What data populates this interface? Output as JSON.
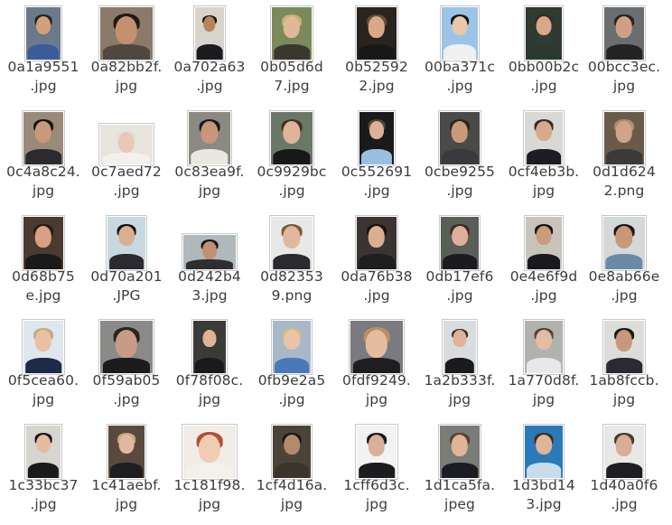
{
  "files": [
    {
      "line1": "0a1a9551",
      "line2": ".jpg",
      "bg": "#6a7a8a",
      "skin": "#d2a07a",
      "hair": "#2a2218",
      "shirt": "#3a5c9a"
    },
    {
      "line1": "0a82bb2f.",
      "line2": "jpg",
      "bg": "#8a7a6a",
      "skin": "#c49070",
      "hair": "#1e1a16",
      "shirt": "#504840"
    },
    {
      "line1": "0a702a63",
      "line2": ".jpg",
      "bg": "#d8d4cc",
      "skin": "#b8845c",
      "hair": "#1a1410",
      "shirt": "#1c1c20"
    },
    {
      "line1": "0b05d6d",
      "line2": "7.jpg",
      "bg": "#7a8a5a",
      "skin": "#e0b898",
      "hair": "#c8b078",
      "shirt": "#3a3630"
    },
    {
      "line1": "0b52592",
      "line2": "2.jpg",
      "bg": "#2a2420",
      "skin": "#d8a888",
      "hair": "#6a4a30",
      "shirt": "#1a1816"
    },
    {
      "line1": "00ba371c",
      "line2": ".jpg",
      "bg": "#9cc4e8",
      "skin": "#e8c8a8",
      "hair": "#141414",
      "shirt": "#f0f0f0"
    },
    {
      "line1": "0bb00b2c",
      "line2": ".jpg",
      "bg": "#2e3a32",
      "skin": "#d8a888",
      "hair": "#3a2c20",
      "shirt": "#2a3a30"
    },
    {
      "line1": "00bcc3ec.",
      "line2": "jpg",
      "bg": "#6a6e70",
      "skin": "#d0a084",
      "hair": "#2a2420",
      "shirt": "#242424"
    },
    {
      "line1": "0c4a8c24.",
      "line2": "jpg",
      "bg": "#9a8a7a",
      "skin": "#c89a7a",
      "hair": "#181410",
      "shirt": "#2a2a30"
    },
    {
      "line1": "0c7aed72",
      "line2": ".jpg",
      "bg": "#e8e4de",
      "skin": "#e8c8b8",
      "hair": "#e8e0d8",
      "shirt": "#f4f0ec"
    },
    {
      "line1": "0c83ea9f.",
      "line2": "jpg",
      "bg": "#8a8a82",
      "skin": "#c8967a",
      "hair": "#1e1814",
      "shirt": "#eae6e0"
    },
    {
      "line1": "0c9929bc",
      "line2": ".jpg",
      "bg": "#6a7868",
      "skin": "#e0b498",
      "hair": "#4a3020",
      "shirt": "#181818"
    },
    {
      "line1": "0c552691",
      "line2": ".jpg",
      "bg": "#1a1a1c",
      "skin": "#dcb098",
      "hair": "#5a4230",
      "shirt": "#9ac0e0"
    },
    {
      "line1": "0cbe9255",
      "line2": ".jpg",
      "bg": "#4a4a48",
      "skin": "#c89a7c",
      "hair": "#2a2420",
      "shirt": "#3a3a3e"
    },
    {
      "line1": "0cf4eb3b.",
      "line2": "jpg",
      "bg": "#d8d8d4",
      "skin": "#d8aa8c",
      "hair": "#3a2c22",
      "shirt": "#1c1c22"
    },
    {
      "line1": "0d1d624",
      "line2": "2.png",
      "bg": "#6a5a4a",
      "skin": "#d0a488",
      "hair": "#a89070",
      "shirt": "#3a3a3a"
    },
    {
      "line1": "0d68b75",
      "line2": "e.jpg",
      "bg": "#4a3a30",
      "skin": "#d8a084",
      "hair": "#2a1e16",
      "shirt": "#1a1a1a"
    },
    {
      "line1": "0d70a201",
      "line2": ".JPG",
      "bg": "#c8d8e0",
      "skin": "#d8b090",
      "hair": "#141010",
      "shirt": "#2a2a30"
    },
    {
      "line1": "0d242b4",
      "line2": "3.jpg",
      "bg": "#b0b8bc",
      "skin": "#c09070",
      "hair": "#1a1614",
      "shirt": "#2e2e30"
    },
    {
      "line1": "0d82353",
      "line2": "9.png",
      "bg": "#e8e8e6",
      "skin": "#e0b8a0",
      "hair": "#7a5a3a",
      "shirt": "#2a2a30"
    },
    {
      "line1": "0da76b38",
      "line2": ".jpg",
      "bg": "#3a3432",
      "skin": "#dcae90",
      "hair": "#1a1210",
      "shirt": "#1e1e1e"
    },
    {
      "line1": "0db17ef6",
      "line2": ".jpg",
      "bg": "#5a5e58",
      "skin": "#dcb09a",
      "hair": "#3a2a1e",
      "shirt": "#1c1c20"
    },
    {
      "line1": "0e4e6f9d",
      "line2": ".jpg",
      "bg": "#c8c4bc",
      "skin": "#c89c7c",
      "hair": "#1a1410",
      "shirt": "#1a1a1e"
    },
    {
      "line1": "0e8ab66e",
      "line2": ".jpg",
      "bg": "#d4d8d8",
      "skin": "#c8987a",
      "hair": "#1e1814",
      "shirt": "#6a8aa8"
    },
    {
      "line1": "0f5cea60.",
      "line2": "jpg",
      "bg": "#dfe6ee",
      "skin": "#e8c0a4",
      "hair": "#c8a880",
      "shirt": "#1e2a4a"
    },
    {
      "line1": "0f59ab05",
      "line2": ".jpg",
      "bg": "#8a8a88",
      "skin": "#c89c84",
      "hair": "#2a2420",
      "shirt": "#1c1c1c"
    },
    {
      "line1": "0f78f08c.",
      "line2": "jpg",
      "bg": "#3a3a36",
      "skin": "#e0b498",
      "hair": "#4a3a2a",
      "shirt": "#1a1a1e"
    },
    {
      "line1": "0fb9e2a5",
      "line2": ".jpg",
      "bg": "#a8b8c8",
      "skin": "#e8c4a8",
      "hair": "#d8b880",
      "shirt": "#4a78b8"
    },
    {
      "line1": "0fdf9249.",
      "line2": "jpg",
      "bg": "#7a7a80",
      "skin": "#e4bca0",
      "hair": "#b89060",
      "shirt": "#1e1e22"
    },
    {
      "line1": "1a2b333f.",
      "line2": "jpg",
      "bg": "#d8dcdc",
      "skin": "#dcb49a",
      "hair": "#3a2c20",
      "shirt": "#1a1a1e"
    },
    {
      "line1": "1a770d8f.",
      "line2": "jpg",
      "bg": "#b0b2ae",
      "skin": "#e4bca4",
      "hair": "#5a4230",
      "shirt": "#e8e8ec"
    },
    {
      "line1": "1ab8fccb.",
      "line2": "jpg",
      "bg": "#dcdcd8",
      "skin": "#c8987c",
      "hair": "#1e1812",
      "shirt": "#2a2a30"
    },
    {
      "line1": "1c33bc37",
      "line2": ".jpg",
      "bg": "#d8d4d0",
      "skin": "#e4bca4",
      "hair": "#1a1210",
      "shirt": "#1a1a1c"
    },
    {
      "line1": "1c41aebf.",
      "line2": "jpg",
      "bg": "#5a4a3e",
      "skin": "#e0b8a0",
      "hair": "#c8a878",
      "shirt": "#1e1e22"
    },
    {
      "line1": "1c181f98.",
      "line2": "jpg",
      "bg": "#f0ece8",
      "skin": "#f0ccb4",
      "hair": "#b05030",
      "shirt": "#f4f0ec"
    },
    {
      "line1": "1cf4d16a.",
      "line2": "jpg",
      "bg": "#4a4438",
      "skin": "#b48a6c",
      "hair": "#1e1814",
      "shirt": "#3a342c"
    },
    {
      "line1": "1cff6d3c.",
      "line2": "jpg",
      "bg": "#f2f2f2",
      "skin": "#d8b09a",
      "hair": "#1e1814",
      "shirt": "#1c1c1e"
    },
    {
      "line1": "1d1ca5fa.",
      "line2": "jpeg",
      "bg": "#7a7c78",
      "skin": "#e0b498",
      "hair": "#5a4230",
      "shirt": "#1c1c24"
    },
    {
      "line1": "1d3bd14",
      "line2": "3.jpg",
      "bg": "#2a7ab8",
      "skin": "#e0b498",
      "hair": "#3a2c20",
      "shirt": "#c8dcec"
    },
    {
      "line1": "1d40a0f6",
      "line2": ".jpg",
      "bg": "#e8e8e6",
      "skin": "#d8ae94",
      "hair": "#4a3a2e",
      "shirt": "#1e1e22"
    }
  ]
}
